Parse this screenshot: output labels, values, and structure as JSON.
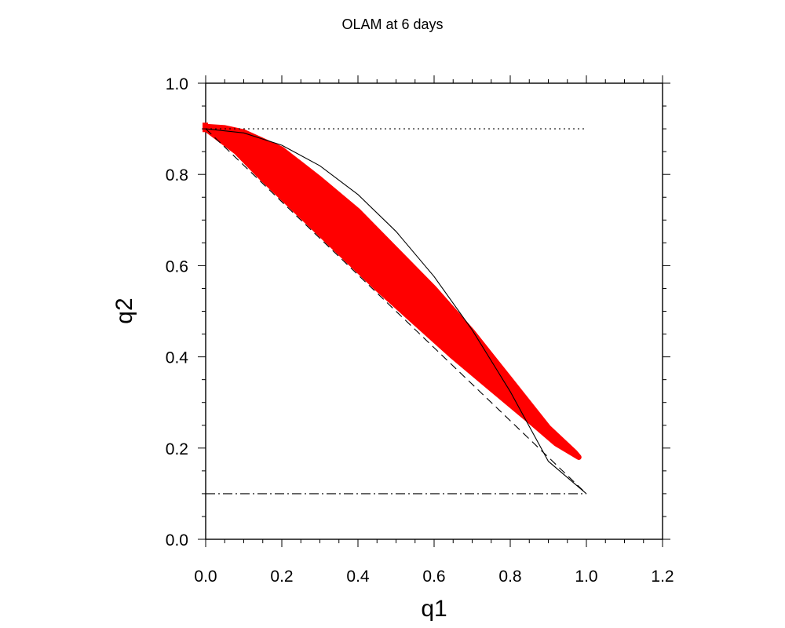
{
  "chart_data": {
    "type": "scatter",
    "title": "OLAM at 6 days",
    "xlabel": "q1",
    "ylabel": "q2",
    "xlim": [
      0.0,
      1.2
    ],
    "ylim": [
      0.0,
      1.0
    ],
    "x_ticks": [
      "0.0",
      "0.2",
      "0.4",
      "0.6",
      "0.8",
      "1.0",
      "1.2"
    ],
    "y_ticks": [
      "0.0",
      "0.2",
      "0.4",
      "0.6",
      "0.8",
      "1.0"
    ],
    "grid": false,
    "colors": {
      "points": "#ff0000",
      "lines": "#000000"
    },
    "scatter_region": {
      "upper_edge": [
        [
          0.0,
          0.905
        ],
        [
          0.05,
          0.902
        ],
        [
          0.1,
          0.893
        ],
        [
          0.2,
          0.855
        ],
        [
          0.3,
          0.79
        ],
        [
          0.4,
          0.72
        ],
        [
          0.5,
          0.635
        ],
        [
          0.6,
          0.55
        ],
        [
          0.7,
          0.455
        ],
        [
          0.8,
          0.35
        ],
        [
          0.9,
          0.245
        ],
        [
          0.97,
          0.19
        ]
      ],
      "lower_edge": [
        [
          0.98,
          0.18
        ],
        [
          0.92,
          0.21
        ],
        [
          0.85,
          0.26
        ],
        [
          0.75,
          0.33
        ],
        [
          0.65,
          0.4
        ],
        [
          0.55,
          0.475
        ],
        [
          0.45,
          0.55
        ],
        [
          0.35,
          0.63
        ],
        [
          0.25,
          0.71
        ],
        [
          0.15,
          0.79
        ],
        [
          0.08,
          0.85
        ],
        [
          0.0,
          0.9
        ]
      ]
    },
    "reference_lines": [
      {
        "name": "curve",
        "style": "solid",
        "points": [
          [
            0.0,
            0.9
          ],
          [
            0.1,
            0.891
          ],
          [
            0.2,
            0.864
          ],
          [
            0.3,
            0.819
          ],
          [
            0.4,
            0.756
          ],
          [
            0.5,
            0.675
          ],
          [
            0.6,
            0.576
          ],
          [
            0.7,
            0.459
          ],
          [
            0.8,
            0.324
          ],
          [
            0.9,
            0.171
          ],
          [
            1.0,
            0.1
          ]
        ]
      },
      {
        "name": "dashed",
        "style": "dashed",
        "points": [
          [
            0.0,
            0.9
          ],
          [
            1.0,
            0.1
          ]
        ]
      },
      {
        "name": "dotted",
        "style": "dotted",
        "points": [
          [
            0.0,
            0.9
          ],
          [
            1.0,
            0.9
          ]
        ]
      },
      {
        "name": "dashdot",
        "style": "dashdot",
        "points": [
          [
            0.0,
            0.1
          ],
          [
            1.0,
            0.1
          ]
        ]
      }
    ]
  }
}
